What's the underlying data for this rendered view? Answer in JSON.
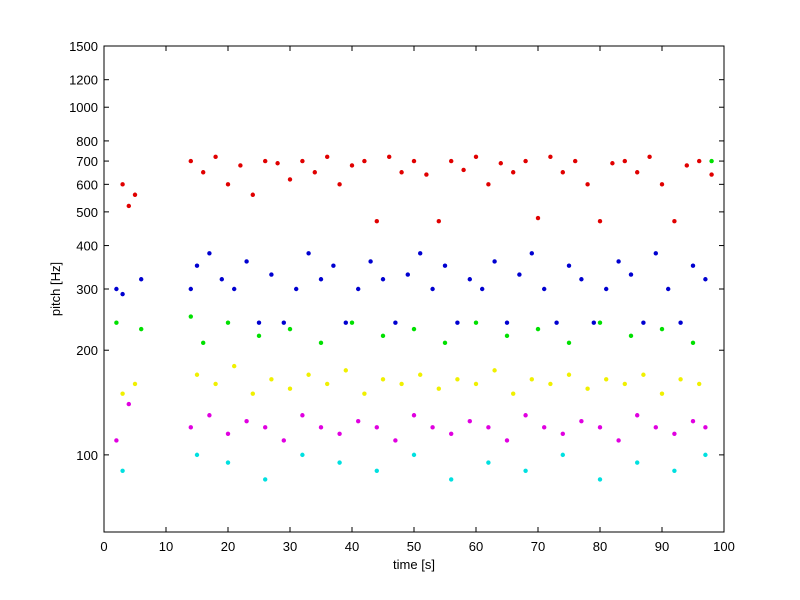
{
  "chart_data": {
    "type": "scatter",
    "title": "",
    "xlabel": "time [s]",
    "ylabel": "pitch [Hz]",
    "xlim": [
      0,
      100
    ],
    "ylim": [
      60,
      1500
    ],
    "yscale": "log",
    "grid": false,
    "legend": "none",
    "x_ticks": [
      0,
      10,
      20,
      30,
      40,
      50,
      60,
      70,
      80,
      90,
      100
    ],
    "x_tick_labels": [
      "0",
      "10",
      "20",
      "30",
      "40",
      "50",
      "60",
      "70",
      "80",
      "90",
      "100"
    ],
    "y_ticks": [
      100,
      200,
      300,
      400,
      500,
      600,
      700,
      800,
      1000,
      1200,
      1500
    ],
    "y_tick_labels": [
      "100",
      "200",
      "300",
      "400",
      "500",
      "600",
      "700",
      "800",
      "1000",
      "1200",
      "1500"
    ],
    "series_colors": {
      "red": "#e00000",
      "blue": "#0000d0",
      "green": "#00e000",
      "yellow": "#f0f000",
      "magenta": "#e000e0",
      "cyan": "#00e0e0"
    },
    "series": [
      {
        "color_key": "red",
        "points": [
          [
            3,
            600
          ],
          [
            4,
            520
          ],
          [
            5,
            560
          ],
          [
            14,
            700
          ],
          [
            16,
            650
          ],
          [
            18,
            720
          ],
          [
            20,
            600
          ],
          [
            22,
            680
          ],
          [
            24,
            560
          ],
          [
            26,
            700
          ],
          [
            28,
            690
          ],
          [
            30,
            620
          ],
          [
            32,
            700
          ],
          [
            34,
            650
          ],
          [
            36,
            720
          ],
          [
            38,
            600
          ],
          [
            40,
            680
          ],
          [
            42,
            700
          ],
          [
            44,
            470
          ],
          [
            46,
            720
          ],
          [
            48,
            650
          ],
          [
            50,
            700
          ],
          [
            52,
            640
          ],
          [
            54,
            470
          ],
          [
            56,
            700
          ],
          [
            58,
            660
          ],
          [
            60,
            720
          ],
          [
            62,
            600
          ],
          [
            64,
            690
          ],
          [
            66,
            650
          ],
          [
            68,
            700
          ],
          [
            70,
            480
          ],
          [
            72,
            720
          ],
          [
            74,
            650
          ],
          [
            76,
            700
          ],
          [
            78,
            600
          ],
          [
            80,
            470
          ],
          [
            82,
            690
          ],
          [
            84,
            700
          ],
          [
            86,
            650
          ],
          [
            88,
            720
          ],
          [
            90,
            600
          ],
          [
            92,
            470
          ],
          [
            94,
            680
          ],
          [
            96,
            700
          ],
          [
            98,
            640
          ]
        ]
      },
      {
        "color_key": "blue",
        "points": [
          [
            2,
            300
          ],
          [
            3,
            290
          ],
          [
            6,
            320
          ],
          [
            14,
            300
          ],
          [
            15,
            350
          ],
          [
            17,
            380
          ],
          [
            19,
            320
          ],
          [
            21,
            300
          ],
          [
            23,
            360
          ],
          [
            25,
            240
          ],
          [
            27,
            330
          ],
          [
            29,
            240
          ],
          [
            31,
            300
          ],
          [
            33,
            380
          ],
          [
            35,
            320
          ],
          [
            37,
            350
          ],
          [
            39,
            240
          ],
          [
            41,
            300
          ],
          [
            43,
            360
          ],
          [
            45,
            320
          ],
          [
            47,
            240
          ],
          [
            49,
            330
          ],
          [
            51,
            380
          ],
          [
            53,
            300
          ],
          [
            55,
            350
          ],
          [
            57,
            240
          ],
          [
            59,
            320
          ],
          [
            61,
            300
          ],
          [
            63,
            360
          ],
          [
            65,
            240
          ],
          [
            67,
            330
          ],
          [
            69,
            380
          ],
          [
            71,
            300
          ],
          [
            73,
            240
          ],
          [
            75,
            350
          ],
          [
            77,
            320
          ],
          [
            79,
            240
          ],
          [
            81,
            300
          ],
          [
            83,
            360
          ],
          [
            85,
            330
          ],
          [
            87,
            240
          ],
          [
            89,
            380
          ],
          [
            91,
            300
          ],
          [
            93,
            240
          ],
          [
            95,
            350
          ],
          [
            97,
            320
          ]
        ]
      },
      {
        "color_key": "yellow",
        "points": [
          [
            3,
            150
          ],
          [
            5,
            160
          ],
          [
            15,
            170
          ],
          [
            18,
            160
          ],
          [
            21,
            180
          ],
          [
            24,
            150
          ],
          [
            27,
            165
          ],
          [
            30,
            155
          ],
          [
            33,
            170
          ],
          [
            36,
            160
          ],
          [
            39,
            175
          ],
          [
            42,
            150
          ],
          [
            45,
            165
          ],
          [
            48,
            160
          ],
          [
            51,
            170
          ],
          [
            54,
            155
          ],
          [
            57,
            165
          ],
          [
            60,
            160
          ],
          [
            63,
            175
          ],
          [
            66,
            150
          ],
          [
            69,
            165
          ],
          [
            72,
            160
          ],
          [
            75,
            170
          ],
          [
            78,
            155
          ],
          [
            81,
            165
          ],
          [
            84,
            160
          ],
          [
            87,
            170
          ],
          [
            90,
            150
          ],
          [
            93,
            165
          ],
          [
            96,
            160
          ]
        ]
      },
      {
        "color_key": "magenta",
        "points": [
          [
            2,
            110
          ],
          [
            4,
            140
          ],
          [
            14,
            120
          ],
          [
            17,
            130
          ],
          [
            20,
            115
          ],
          [
            23,
            125
          ],
          [
            26,
            120
          ],
          [
            29,
            110
          ],
          [
            32,
            130
          ],
          [
            35,
            120
          ],
          [
            38,
            115
          ],
          [
            41,
            125
          ],
          [
            44,
            120
          ],
          [
            47,
            110
          ],
          [
            50,
            130
          ],
          [
            53,
            120
          ],
          [
            56,
            115
          ],
          [
            59,
            125
          ],
          [
            62,
            120
          ],
          [
            65,
            110
          ],
          [
            68,
            130
          ],
          [
            71,
            120
          ],
          [
            74,
            115
          ],
          [
            77,
            125
          ],
          [
            80,
            120
          ],
          [
            83,
            110
          ],
          [
            86,
            130
          ],
          [
            89,
            120
          ],
          [
            92,
            115
          ],
          [
            95,
            125
          ],
          [
            97,
            120
          ]
        ]
      },
      {
        "color_key": "green",
        "points": [
          [
            2,
            240
          ],
          [
            6,
            230
          ],
          [
            14,
            250
          ],
          [
            16,
            210
          ],
          [
            20,
            240
          ],
          [
            25,
            220
          ],
          [
            30,
            230
          ],
          [
            35,
            210
          ],
          [
            40,
            240
          ],
          [
            45,
            220
          ],
          [
            50,
            230
          ],
          [
            55,
            210
          ],
          [
            60,
            240
          ],
          [
            65,
            220
          ],
          [
            70,
            230
          ],
          [
            75,
            210
          ],
          [
            80,
            240
          ],
          [
            85,
            220
          ],
          [
            90,
            230
          ],
          [
            95,
            210
          ],
          [
            98,
            700
          ]
        ]
      },
      {
        "color_key": "cyan",
        "points": [
          [
            3,
            90
          ],
          [
            15,
            100
          ],
          [
            20,
            95
          ],
          [
            26,
            85
          ],
          [
            32,
            100
          ],
          [
            38,
            95
          ],
          [
            44,
            90
          ],
          [
            50,
            100
          ],
          [
            56,
            85
          ],
          [
            62,
            95
          ],
          [
            68,
            90
          ],
          [
            74,
            100
          ],
          [
            80,
            85
          ],
          [
            86,
            95
          ],
          [
            92,
            90
          ],
          [
            97,
            100
          ]
        ]
      }
    ]
  }
}
